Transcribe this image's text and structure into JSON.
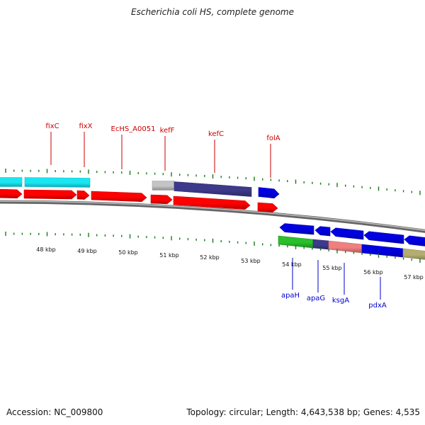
{
  "map": {
    "title": "Escherichia coli HS, complete genome",
    "accession": "Accession: NC_009800",
    "topology": "Topology: circular; Length: 4,643,538 bp; Genes: 4,535"
  },
  "scale": {
    "ticks": [
      "48 kbp",
      "49 kbp",
      "50 kbp",
      "51 kbp",
      "52 kbp",
      "53 kbp",
      "54 kbp",
      "55 kbp",
      "56 kbp",
      "57 kbp"
    ]
  },
  "genes": {
    "forward": [
      "fixC",
      "fixX",
      "EcHS_A0051",
      "kefF",
      "kefC",
      "folA"
    ],
    "reverse": [
      "apaH",
      "apaG",
      "ksgA",
      "pdxA"
    ]
  },
  "colors": {
    "cds": "#ff0000",
    "cds_reverse": "#0000e0",
    "forward_label": "#cc0000",
    "reverse_label": "#0000cc",
    "tick": "#1a7a1a",
    "backbone": "#8a8a8a",
    "cyan": "#19e6f2",
    "grey": "#c4c4c4",
    "purple": "#3d3a8c",
    "green": "#2bbf2b",
    "pink": "#f08080",
    "khaki": "#b5ad70"
  }
}
